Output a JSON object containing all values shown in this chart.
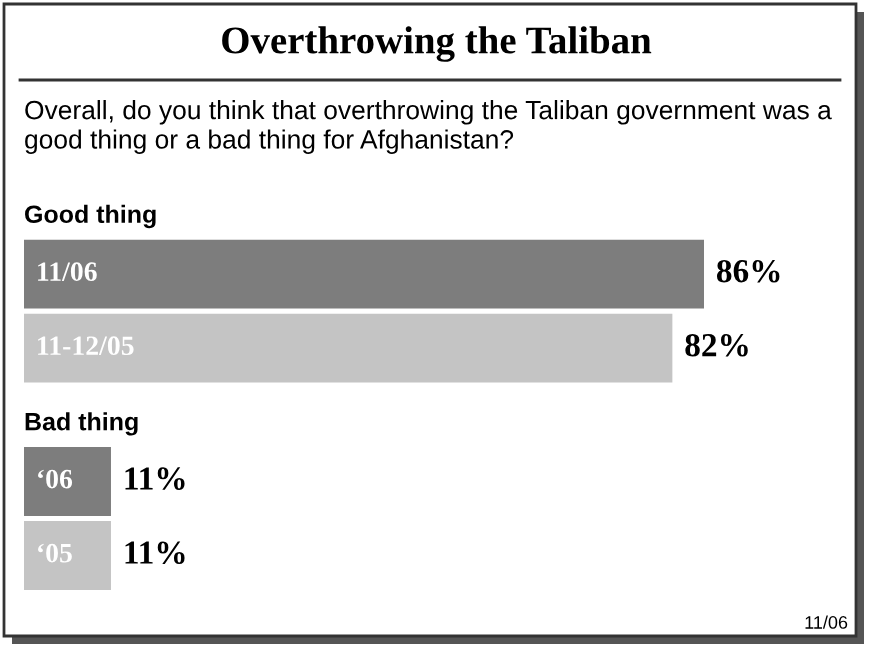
{
  "chart_data": {
    "type": "bar",
    "orientation": "horizontal",
    "title": "Overthrowing the Taliban",
    "subtitle": "Overall, do you think that overthrowing the Taliban government was a good thing or a bad thing for Afghanistan?",
    "categories": [
      "11/06",
      "11-12/05",
      "‘06",
      "‘05"
    ],
    "values": [
      86,
      82,
      11,
      11
    ],
    "colors": [
      "#7d7d7d",
      "#c4c4c4",
      "#7d7d7d",
      "#c4c4c4"
    ],
    "value_labels": [
      "86%",
      "82%",
      "11%",
      "11%"
    ],
    "annotations": [
      "Good thing",
      "Bad thing",
      "11/06"
    ]
  }
}
